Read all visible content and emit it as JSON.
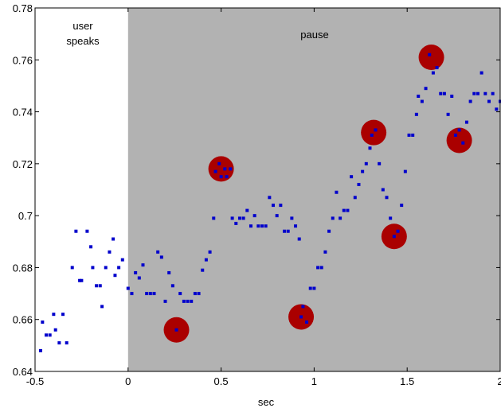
{
  "chart_data": {
    "type": "scatter",
    "title": "",
    "xlabel": "sec",
    "ylabel": "",
    "xlim": [
      -0.5,
      2
    ],
    "ylim": [
      0.64,
      0.78
    ],
    "xticks": [
      -0.5,
      0,
      0.5,
      1,
      1.5,
      2
    ],
    "xtick_labels": [
      "-0.5",
      "0",
      "0.5",
      "1",
      "1.5",
      "2"
    ],
    "yticks": [
      0.64,
      0.66,
      0.68,
      0.7,
      0.72,
      0.74,
      0.76,
      0.78
    ],
    "ytick_labels": [
      "0.64",
      "0.66",
      "0.68",
      "0.7",
      "0.72",
      "0.74",
      "0.76",
      "0.78"
    ],
    "grid": false,
    "regions": [
      {
        "label_lines": [
          "user",
          "speaks"
        ],
        "x_start": -0.5,
        "x_end": 0,
        "color": "#ffffff"
      },
      {
        "label_lines": [
          "pause"
        ],
        "x_start": 0,
        "x_end": 2,
        "color": "#b2b2b2"
      }
    ],
    "series": [
      {
        "marker_color": "#0000cc",
        "points": [
          [
            -0.47,
            0.648
          ],
          [
            -0.46,
            0.659
          ],
          [
            -0.44,
            0.654
          ],
          [
            -0.42,
            0.654
          ],
          [
            -0.4,
            0.662
          ],
          [
            -0.39,
            0.656
          ],
          [
            -0.37,
            0.651
          ],
          [
            -0.35,
            0.662
          ],
          [
            -0.33,
            0.651
          ],
          [
            -0.3,
            0.68
          ],
          [
            -0.28,
            0.694
          ],
          [
            -0.26,
            0.675
          ],
          [
            -0.25,
            0.675
          ],
          [
            -0.22,
            0.694
          ],
          [
            -0.2,
            0.688
          ],
          [
            -0.19,
            0.68
          ],
          [
            -0.17,
            0.673
          ],
          [
            -0.15,
            0.673
          ],
          [
            -0.14,
            0.665
          ],
          [
            -0.12,
            0.68
          ],
          [
            -0.1,
            0.686
          ],
          [
            -0.08,
            0.691
          ],
          [
            -0.07,
            0.677
          ],
          [
            -0.05,
            0.68
          ],
          [
            -0.03,
            0.683
          ],
          [
            0.0,
            0.672
          ],
          [
            0.02,
            0.67
          ],
          [
            0.04,
            0.678
          ],
          [
            0.06,
            0.676
          ],
          [
            0.08,
            0.681
          ],
          [
            0.1,
            0.67
          ],
          [
            0.12,
            0.67
          ],
          [
            0.14,
            0.67
          ],
          [
            0.16,
            0.686
          ],
          [
            0.18,
            0.684
          ],
          [
            0.2,
            0.667
          ],
          [
            0.22,
            0.678
          ],
          [
            0.24,
            0.673
          ],
          [
            0.26,
            0.656
          ],
          [
            0.28,
            0.67
          ],
          [
            0.3,
            0.667
          ],
          [
            0.32,
            0.667
          ],
          [
            0.34,
            0.667
          ],
          [
            0.36,
            0.67
          ],
          [
            0.38,
            0.67
          ],
          [
            0.4,
            0.679
          ],
          [
            0.42,
            0.683
          ],
          [
            0.44,
            0.686
          ],
          [
            0.46,
            0.699
          ],
          [
            0.47,
            0.717
          ],
          [
            0.49,
            0.72
          ],
          [
            0.5,
            0.715
          ],
          [
            0.52,
            0.718
          ],
          [
            0.53,
            0.715
          ],
          [
            0.55,
            0.718
          ],
          [
            0.56,
            0.699
          ],
          [
            0.58,
            0.697
          ],
          [
            0.6,
            0.699
          ],
          [
            0.62,
            0.699
          ],
          [
            0.64,
            0.702
          ],
          [
            0.66,
            0.696
          ],
          [
            0.68,
            0.7
          ],
          [
            0.7,
            0.696
          ],
          [
            0.72,
            0.696
          ],
          [
            0.74,
            0.696
          ],
          [
            0.76,
            0.707
          ],
          [
            0.78,
            0.704
          ],
          [
            0.8,
            0.7
          ],
          [
            0.82,
            0.704
          ],
          [
            0.84,
            0.694
          ],
          [
            0.86,
            0.694
          ],
          [
            0.88,
            0.699
          ],
          [
            0.9,
            0.696
          ],
          [
            0.92,
            0.691
          ],
          [
            0.93,
            0.661
          ],
          [
            0.94,
            0.665
          ],
          [
            0.96,
            0.659
          ],
          [
            0.98,
            0.672
          ],
          [
            1.0,
            0.672
          ],
          [
            1.02,
            0.68
          ],
          [
            1.04,
            0.68
          ],
          [
            1.06,
            0.686
          ],
          [
            1.08,
            0.694
          ],
          [
            1.1,
            0.699
          ],
          [
            1.12,
            0.709
          ],
          [
            1.14,
            0.699
          ],
          [
            1.16,
            0.702
          ],
          [
            1.18,
            0.702
          ],
          [
            1.2,
            0.715
          ],
          [
            1.22,
            0.707
          ],
          [
            1.24,
            0.712
          ],
          [
            1.26,
            0.717
          ],
          [
            1.28,
            0.72
          ],
          [
            1.3,
            0.726
          ],
          [
            1.31,
            0.731
          ],
          [
            1.33,
            0.733
          ],
          [
            1.35,
            0.72
          ],
          [
            1.37,
            0.71
          ],
          [
            1.39,
            0.707
          ],
          [
            1.41,
            0.699
          ],
          [
            1.43,
            0.692
          ],
          [
            1.45,
            0.694
          ],
          [
            1.47,
            0.704
          ],
          [
            1.49,
            0.717
          ],
          [
            1.51,
            0.731
          ],
          [
            1.53,
            0.731
          ],
          [
            1.55,
            0.739
          ],
          [
            1.56,
            0.746
          ],
          [
            1.58,
            0.744
          ],
          [
            1.6,
            0.749
          ],
          [
            1.62,
            0.762
          ],
          [
            1.64,
            0.755
          ],
          [
            1.66,
            0.757
          ],
          [
            1.68,
            0.747
          ],
          [
            1.7,
            0.747
          ],
          [
            1.72,
            0.739
          ],
          [
            1.74,
            0.746
          ],
          [
            1.76,
            0.731
          ],
          [
            1.78,
            0.733
          ],
          [
            1.8,
            0.728
          ],
          [
            1.82,
            0.736
          ],
          [
            1.84,
            0.744
          ],
          [
            1.86,
            0.747
          ],
          [
            1.88,
            0.747
          ],
          [
            1.9,
            0.755
          ],
          [
            1.92,
            0.747
          ],
          [
            1.94,
            0.744
          ],
          [
            1.96,
            0.747
          ],
          [
            1.98,
            0.741
          ],
          [
            2.0,
            0.744
          ]
        ]
      }
    ],
    "highlights": {
      "color": "#aa0000",
      "points": [
        [
          0.26,
          0.656
        ],
        [
          0.5,
          0.718
        ],
        [
          0.93,
          0.661
        ],
        [
          1.32,
          0.732
        ],
        [
          1.43,
          0.692
        ],
        [
          1.63,
          0.761
        ],
        [
          1.78,
          0.729
        ]
      ]
    }
  }
}
